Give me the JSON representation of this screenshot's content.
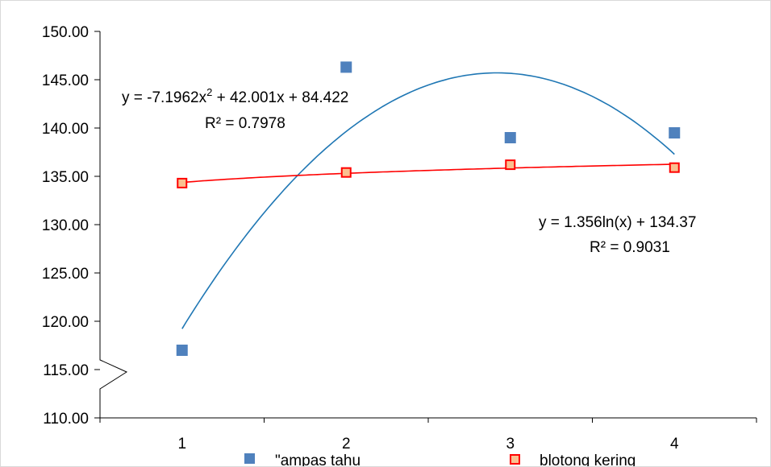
{
  "chart_data": {
    "type": "scatter",
    "title": "",
    "xlabel": "",
    "ylabel": "",
    "x_categories": [
      "1",
      "2",
      "3",
      "4"
    ],
    "ylim": [
      110,
      150
    ],
    "yticks": [
      "110.00",
      "115.00",
      "120.00",
      "125.00",
      "130.00",
      "135.00",
      "140.00",
      "145.00",
      "150.00"
    ],
    "grid": false,
    "legend_position": "bottom",
    "axis_break": true,
    "series": [
      {
        "name": "\"ampas tahu",
        "marker": "square",
        "color": "#4f81bd",
        "x": [
          1,
          2,
          3,
          4
        ],
        "y": [
          117.0,
          146.3,
          139.0,
          139.5
        ],
        "trendline": {
          "type": "polynomial",
          "color": "#1f77b4",
          "equation": "y = -7.1962x² + 42.001x + 84.422",
          "equation_parts": [
            "y = -7.1962x",
            "2",
            " + 42.001x + 84.422"
          ],
          "r_squared": "R² = 0.7978",
          "coefficients": [
            -7.1962,
            42.001,
            84.422
          ]
        }
      },
      {
        "name": "blotong kering",
        "marker": "square-outline",
        "color": "#ff0000",
        "fill": "#fac090",
        "x": [
          1,
          2,
          3,
          4
        ],
        "y": [
          134.3,
          135.4,
          136.2,
          135.9
        ],
        "trendline": {
          "type": "logarithmic",
          "color": "#ff0000",
          "equation": "y = 1.356ln(x) + 134.37",
          "r_squared": "R² = 0.9031",
          "coefficients": [
            1.356,
            134.37
          ]
        }
      }
    ]
  }
}
